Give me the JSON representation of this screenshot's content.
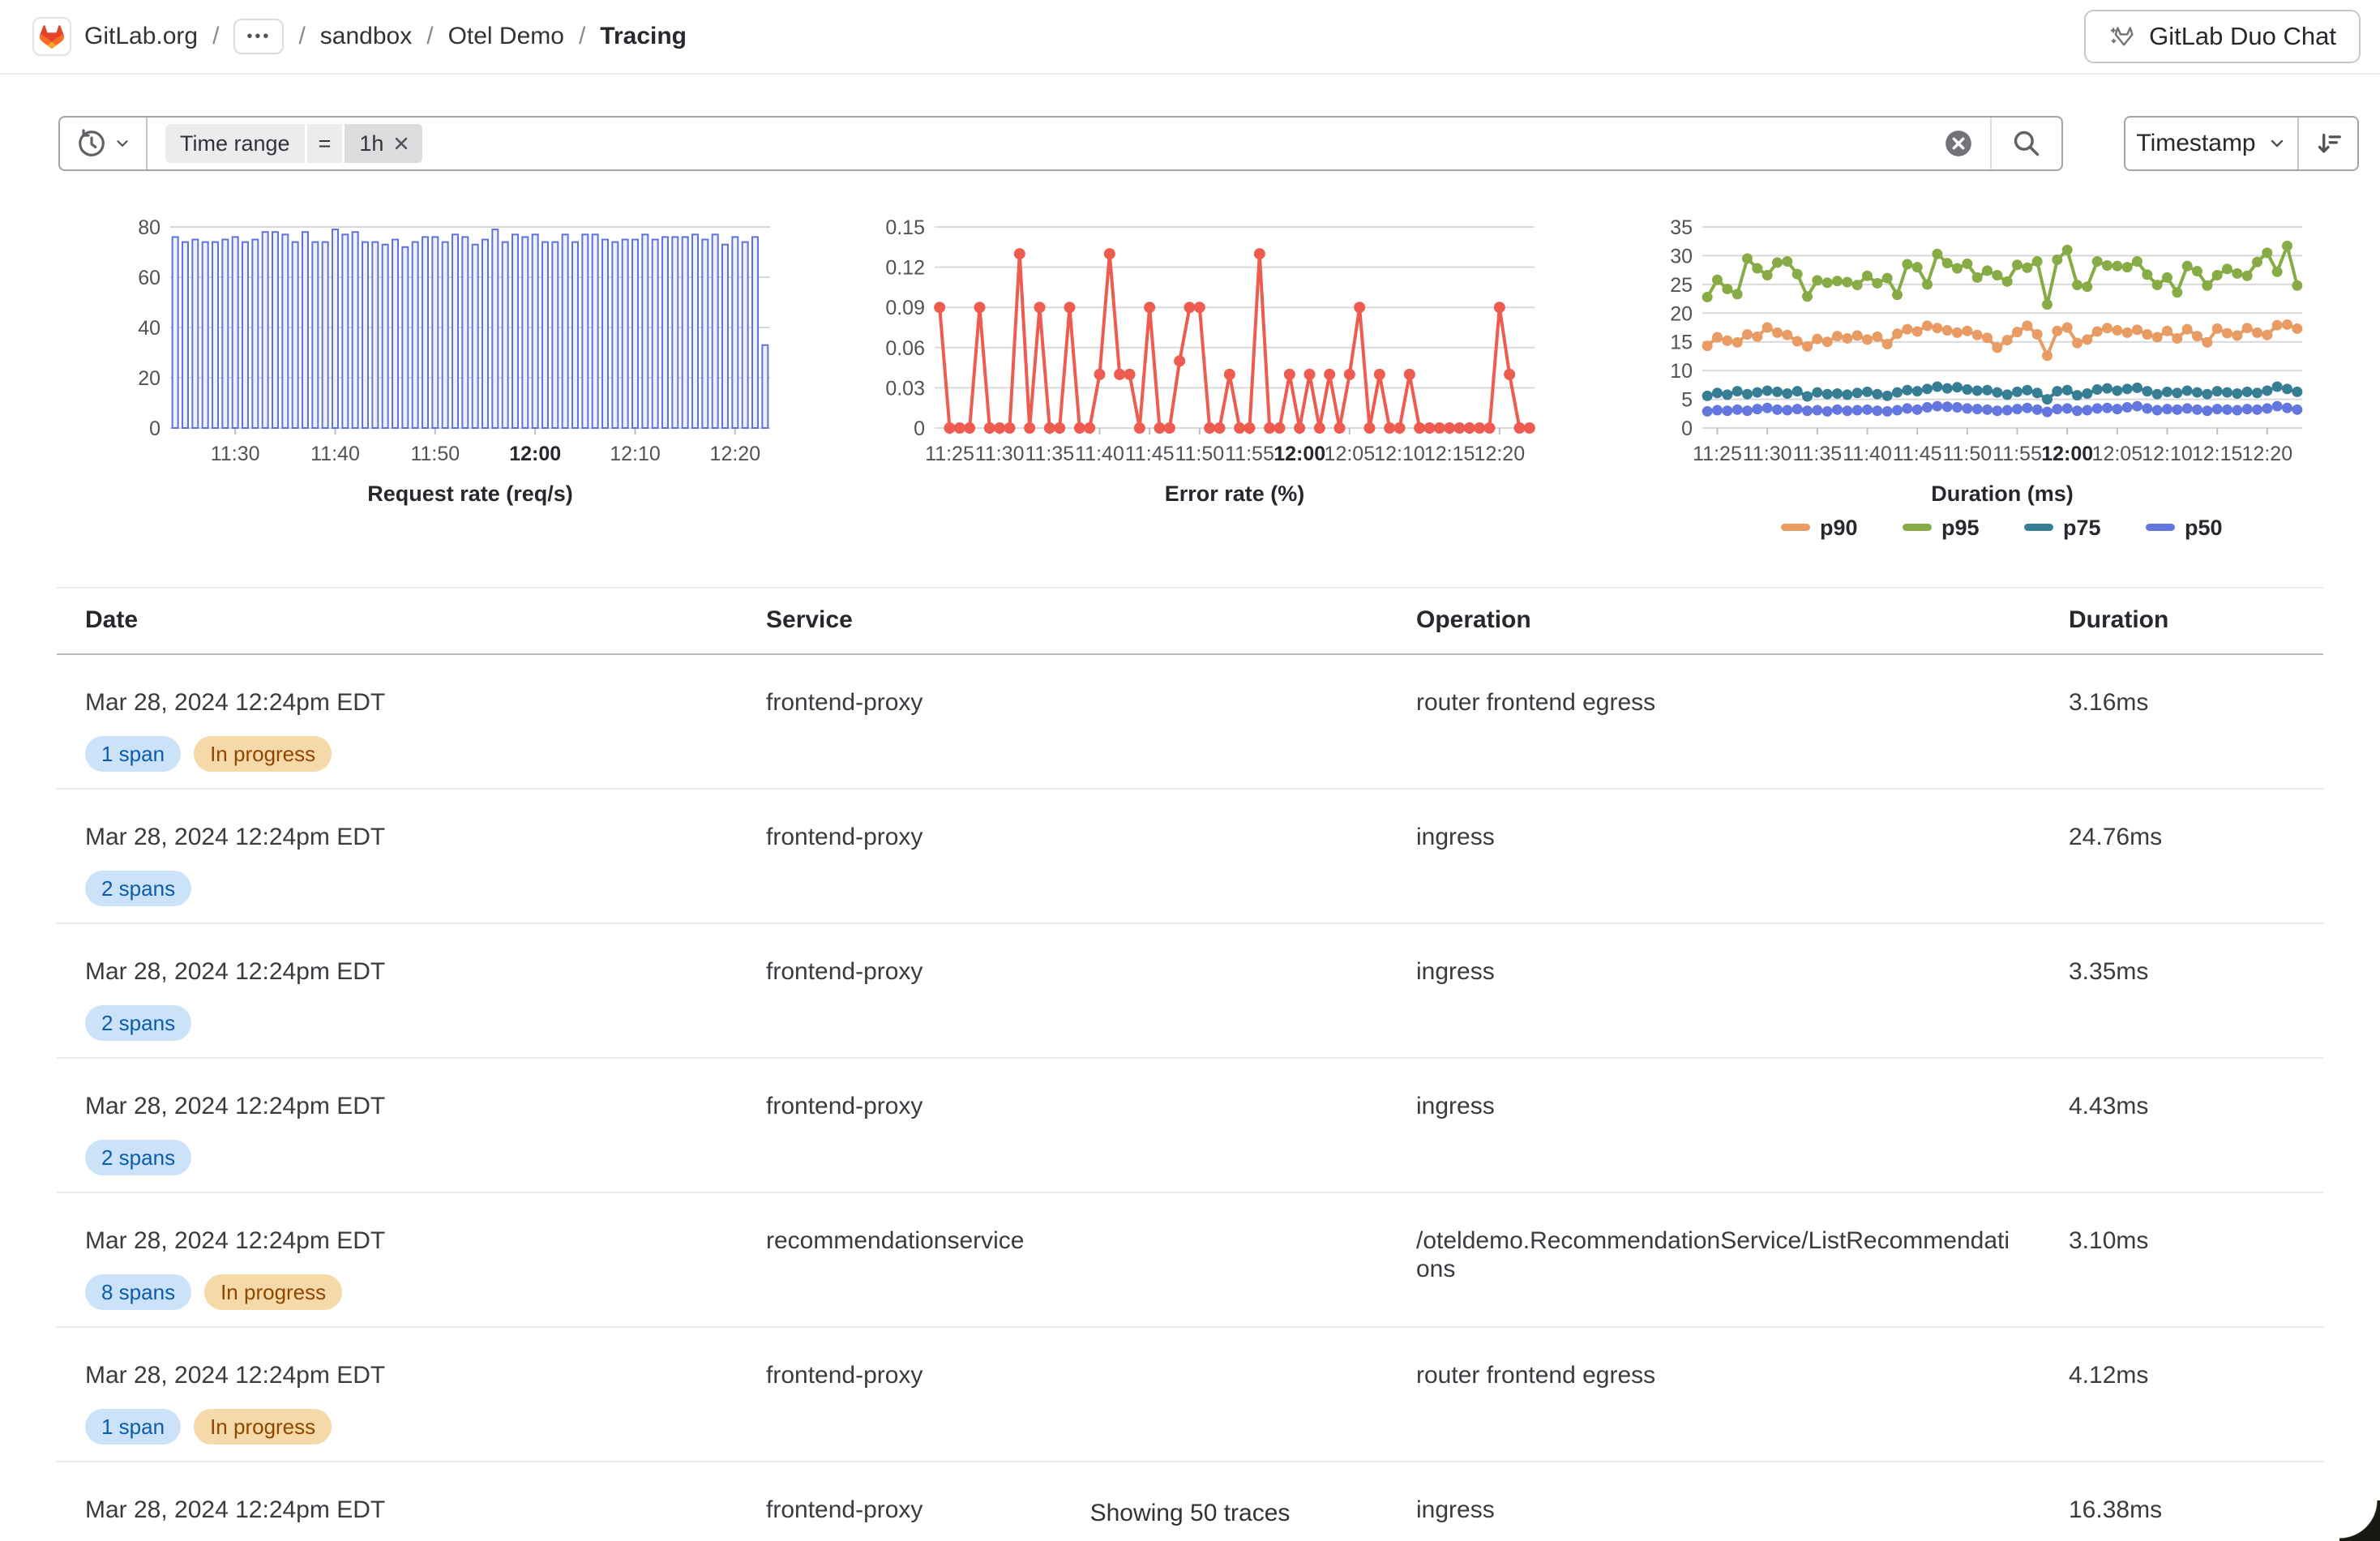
{
  "header": {
    "org": "GitLab.org",
    "separator": "/",
    "ellipsis": "•••",
    "crumb_group": "sandbox",
    "crumb_project": "Otel Demo",
    "crumb_current": "Tracing",
    "duo_chat_label": "GitLab Duo Chat"
  },
  "filter_bar": {
    "token_key": "Time range",
    "token_operator": "=",
    "token_value": "1h",
    "sort_field": "Timestamp"
  },
  "chart_data": [
    {
      "id": "request-rate",
      "type": "bar",
      "title": "Request rate (req/s)",
      "color": "#5f73d9",
      "fill": "#eef1fc",
      "ylim": [
        0,
        80
      ],
      "yticks": [
        "0",
        "20",
        "40",
        "60",
        "80"
      ],
      "x_count": 60,
      "xticks": [
        {
          "label": "11:30",
          "i": 6
        },
        {
          "label": "11:40",
          "i": 16
        },
        {
          "label": "11:50",
          "i": 26
        },
        {
          "label": "12:00",
          "i": 36,
          "bold": true
        },
        {
          "label": "12:10",
          "i": 46
        },
        {
          "label": "12:20",
          "i": 56
        }
      ],
      "values": [
        76,
        74,
        75,
        74,
        74,
        75,
        76,
        74,
        75,
        78,
        78,
        77,
        74,
        78,
        74,
        74,
        79,
        77,
        78,
        74,
        74,
        73,
        75,
        72,
        74,
        76,
        76,
        74,
        77,
        76,
        73,
        75,
        79,
        74,
        77,
        76,
        77,
        74,
        74,
        77,
        74,
        77,
        77,
        75,
        74,
        75,
        75,
        77,
        75,
        76,
        76,
        76,
        77,
        75,
        77,
        73,
        76,
        74,
        76,
        33
      ]
    },
    {
      "id": "error-rate",
      "type": "line",
      "title": "Error rate (%)",
      "color": "#ee5b4f",
      "marker_r": 7,
      "ylim": [
        0,
        0.15
      ],
      "yticks": [
        "0",
        "0.03",
        "0.06",
        "0.09",
        "0.12",
        "0.15"
      ],
      "x_count": 60,
      "xticks": [
        {
          "label": "11:25",
          "i": 1
        },
        {
          "label": "11:30",
          "i": 6
        },
        {
          "label": "11:35",
          "i": 11
        },
        {
          "label": "11:40",
          "i": 16
        },
        {
          "label": "11:45",
          "i": 21
        },
        {
          "label": "11:50",
          "i": 26
        },
        {
          "label": "11:55",
          "i": 31
        },
        {
          "label": "12:00",
          "i": 36,
          "bold": true
        },
        {
          "label": "12:05",
          "i": 41
        },
        {
          "label": "12:10",
          "i": 46
        },
        {
          "label": "12:15",
          "i": 51
        },
        {
          "label": "12:20",
          "i": 56
        }
      ],
      "values": [
        0.09,
        0,
        0,
        0,
        0.09,
        0,
        0,
        0,
        0.13,
        0,
        0.09,
        0,
        0,
        0.09,
        0,
        0,
        0.04,
        0.13,
        0.04,
        0.04,
        0,
        0.09,
        0,
        0,
        0.05,
        0.09,
        0.09,
        0,
        0,
        0.04,
        0,
        0,
        0.13,
        0,
        0,
        0.04,
        0,
        0.04,
        0,
        0.04,
        0,
        0.04,
        0.09,
        0,
        0.04,
        0,
        0,
        0.04,
        0,
        0,
        0,
        0,
        0,
        0,
        0,
        0,
        0.09,
        0.04,
        0,
        0
      ]
    },
    {
      "id": "duration",
      "type": "line",
      "title": "Duration (ms)",
      "marker_r": 6.5,
      "ylim": [
        0,
        35
      ],
      "yticks": [
        "0",
        "5",
        "10",
        "15",
        "20",
        "25",
        "30",
        "35"
      ],
      "x_count": 60,
      "xticks": [
        {
          "label": "11:25",
          "i": 1
        },
        {
          "label": "11:30",
          "i": 6
        },
        {
          "label": "11:35",
          "i": 11
        },
        {
          "label": "11:40",
          "i": 16
        },
        {
          "label": "11:45",
          "i": 21
        },
        {
          "label": "11:50",
          "i": 26
        },
        {
          "label": "11:55",
          "i": 31
        },
        {
          "label": "12:00",
          "i": 36,
          "bold": true
        },
        {
          "label": "12:05",
          "i": 41
        },
        {
          "label": "12:10",
          "i": 46
        },
        {
          "label": "12:15",
          "i": 51
        },
        {
          "label": "12:20",
          "i": 56
        }
      ],
      "legend": [
        {
          "label": "p90",
          "color": "#e89b62"
        },
        {
          "label": "p95",
          "color": "#87ab45"
        },
        {
          "label": "p75",
          "color": "#377d93"
        },
        {
          "label": "p50",
          "color": "#6377de"
        }
      ],
      "series": [
        {
          "name": "p90",
          "color": "#e89b62",
          "values": [
            14.3,
            15.8,
            15.2,
            14.9,
            16.3,
            15.9,
            17.5,
            16.6,
            16.2,
            15.1,
            14.2,
            15.5,
            15.0,
            16.0,
            15.6,
            16.1,
            15.4,
            15.9,
            14.6,
            16.4,
            17.2,
            16.8,
            17.8,
            17.4,
            17.0,
            16.6,
            16.9,
            16.2,
            15.7,
            14.0,
            15.3,
            16.7,
            17.8,
            16.3,
            12.6,
            16.9,
            17.5,
            14.8,
            15.4,
            16.8,
            17.4,
            17.0,
            16.6,
            17.1,
            16.3,
            15.8,
            16.9,
            15.6,
            17.2,
            16.0,
            14.9,
            17.3,
            16.5,
            16.1,
            17.4,
            16.6,
            16.2,
            17.9,
            18.0,
            17.3
          ]
        },
        {
          "name": "p95",
          "color": "#87ab45",
          "values": [
            22.8,
            25.8,
            24.2,
            23.3,
            29.5,
            27.8,
            26.6,
            28.8,
            29.0,
            26.8,
            22.9,
            25.7,
            25.3,
            25.6,
            25.4,
            24.9,
            26.5,
            25.2,
            26.1,
            23.2,
            28.5,
            28.0,
            25.0,
            30.3,
            28.7,
            27.8,
            28.6,
            26.2,
            27.4,
            26.6,
            25.5,
            28.4,
            27.9,
            29.0,
            21.5,
            29.3,
            31.0,
            24.9,
            24.6,
            29.0,
            28.3,
            28.2,
            28.0,
            29.0,
            26.7,
            24.9,
            26.2,
            23.6,
            28.2,
            27.3,
            24.8,
            26.6,
            27.7,
            26.9,
            26.5,
            28.9,
            30.5,
            27.2,
            31.7,
            24.8
          ]
        },
        {
          "name": "p75",
          "color": "#377d93",
          "values": [
            5.6,
            6.1,
            5.8,
            6.4,
            5.9,
            6.2,
            6.5,
            6.3,
            6.0,
            6.4,
            5.5,
            6.2,
            5.9,
            6.0,
            5.8,
            6.1,
            6.3,
            5.9,
            5.6,
            6.2,
            6.6,
            6.4,
            6.8,
            7.2,
            6.9,
            7.1,
            6.7,
            6.5,
            6.6,
            6.2,
            5.8,
            6.3,
            6.6,
            6.1,
            5.0,
            6.4,
            6.6,
            5.7,
            6.0,
            6.7,
            6.9,
            6.5,
            6.8,
            7.0,
            6.4,
            5.9,
            6.3,
            6.1,
            6.5,
            6.2,
            5.9,
            6.4,
            6.2,
            6.0,
            6.3,
            6.1,
            6.5,
            7.2,
            6.8,
            6.3
          ]
        },
        {
          "name": "p50",
          "color": "#6377de",
          "values": [
            2.9,
            3.1,
            3.0,
            3.2,
            3.0,
            3.3,
            3.5,
            3.2,
            3.1,
            3.3,
            3.0,
            3.1,
            2.9,
            3.2,
            3.0,
            3.1,
            3.2,
            3.0,
            2.9,
            3.1,
            3.4,
            3.2,
            3.6,
            3.8,
            3.7,
            3.6,
            3.4,
            3.3,
            3.2,
            3.0,
            3.1,
            3.3,
            3.5,
            3.2,
            2.8,
            3.3,
            3.4,
            3.0,
            3.1,
            3.4,
            3.5,
            3.3,
            3.6,
            3.8,
            3.4,
            3.1,
            3.3,
            3.2,
            3.4,
            3.2,
            3.0,
            3.3,
            3.2,
            3.1,
            3.3,
            3.2,
            3.4,
            3.8,
            3.5,
            3.2
          ]
        }
      ]
    }
  ],
  "table": {
    "columns": [
      "Date",
      "Service",
      "Operation",
      "Duration"
    ],
    "rows": [
      {
        "date": "Mar 28, 2024 12:24pm EDT",
        "badges": [
          {
            "label": "1 span",
            "type": "info"
          },
          {
            "label": "In progress",
            "type": "warning"
          }
        ],
        "service": "frontend-proxy",
        "operation": "router frontend egress",
        "duration": "3.16ms"
      },
      {
        "date": "Mar 28, 2024 12:24pm EDT",
        "badges": [
          {
            "label": "2 spans",
            "type": "info"
          }
        ],
        "service": "frontend-proxy",
        "operation": "ingress",
        "duration": "24.76ms"
      },
      {
        "date": "Mar 28, 2024 12:24pm EDT",
        "badges": [
          {
            "label": "2 spans",
            "type": "info"
          }
        ],
        "service": "frontend-proxy",
        "operation": "ingress",
        "duration": "3.35ms"
      },
      {
        "date": "Mar 28, 2024 12:24pm EDT",
        "badges": [
          {
            "label": "2 spans",
            "type": "info"
          }
        ],
        "service": "frontend-proxy",
        "operation": "ingress",
        "duration": "4.43ms"
      },
      {
        "date": "Mar 28, 2024 12:24pm EDT",
        "badges": [
          {
            "label": "8 spans",
            "type": "info"
          },
          {
            "label": "In progress",
            "type": "warning"
          }
        ],
        "service": "recommendationservice",
        "operation": "/oteldemo.RecommendationService/ListRecommendations",
        "duration": "3.10ms"
      },
      {
        "date": "Mar 28, 2024 12:24pm EDT",
        "badges": [
          {
            "label": "1 span",
            "type": "info"
          },
          {
            "label": "In progress",
            "type": "warning"
          }
        ],
        "service": "frontend-proxy",
        "operation": "router frontend egress",
        "duration": "4.12ms"
      },
      {
        "date": "Mar 28, 2024 12:24pm EDT",
        "badges": [],
        "service": "frontend-proxy",
        "operation": "ingress",
        "duration": "16.38ms"
      }
    ]
  },
  "footer": {
    "summary": "Showing 50 traces"
  },
  "colors": {
    "request_rate_bar": "#5f73d9",
    "error_rate_line": "#ee5b4f",
    "p90": "#e89b62",
    "p95": "#87ab45",
    "p75": "#377d93",
    "p50": "#6377de",
    "badge_info_bg": "#cbe2f9",
    "badge_info_text": "#0b5cad",
    "badge_warning_bg": "#f5d9a8",
    "badge_warning_text": "#8f4700"
  }
}
